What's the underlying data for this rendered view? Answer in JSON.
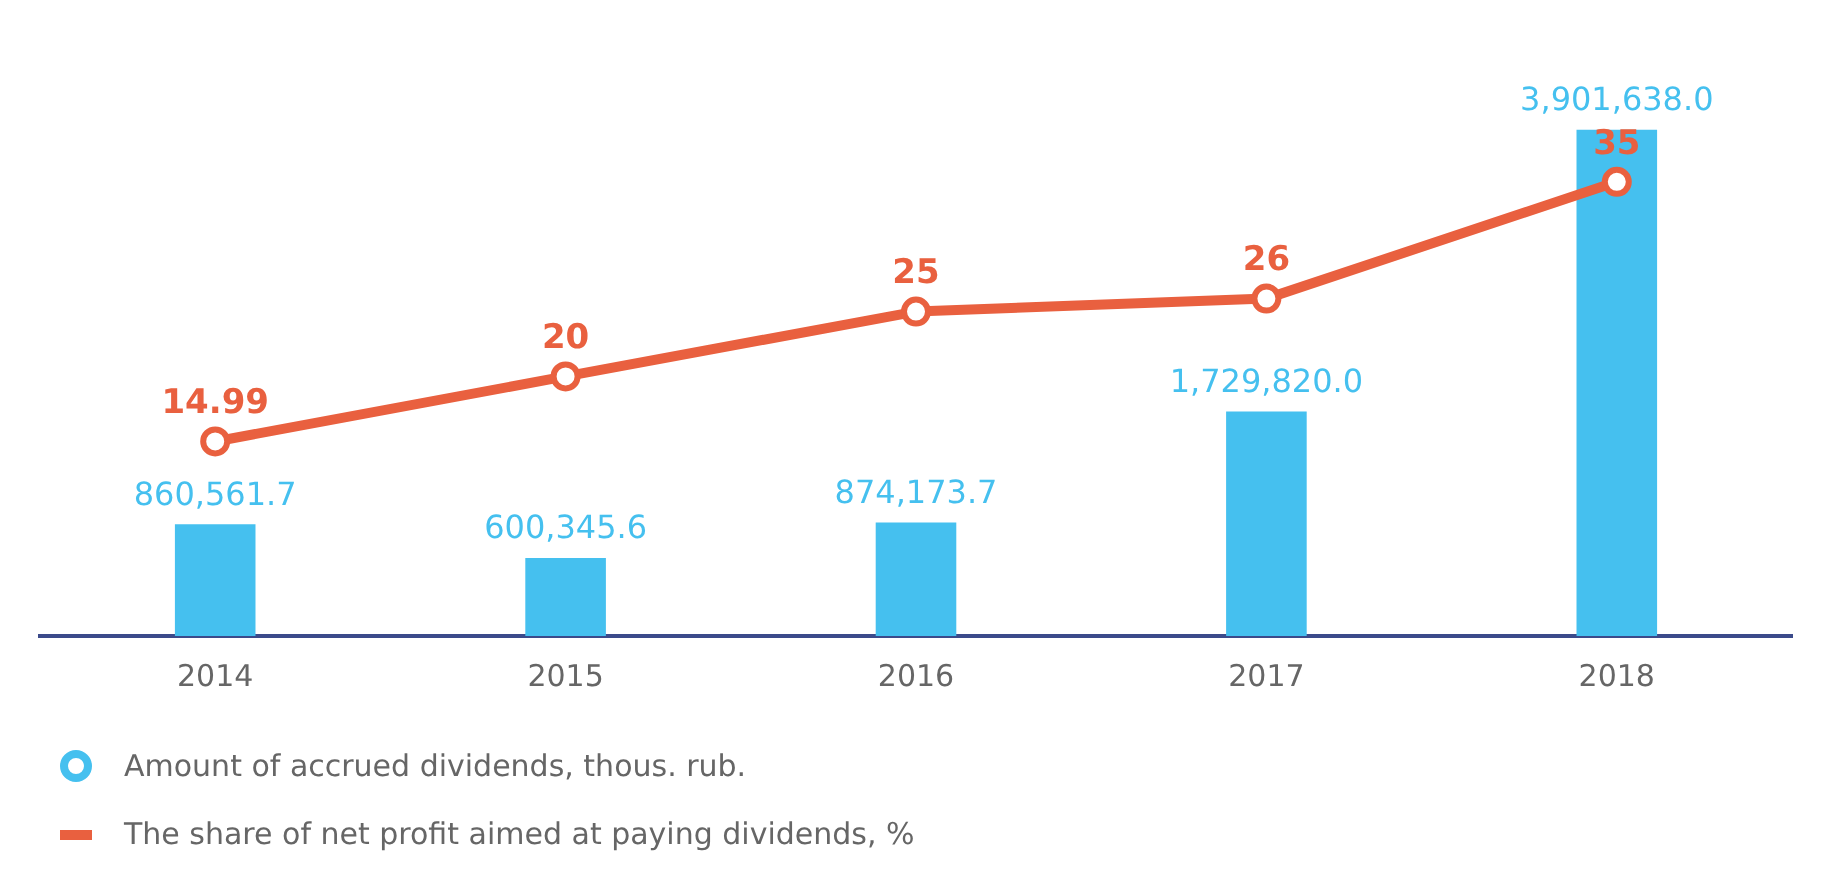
{
  "chart_data": {
    "type": "bar",
    "categories": [
      "2014",
      "2015",
      "2016",
      "2017",
      "2018"
    ],
    "series": [
      {
        "name": "Amount of accrued dividends, thous. rub.",
        "type": "bar",
        "color": "#45c0ef",
        "values": [
          860561.7,
          600345.6,
          874173.7,
          1729820.0,
          3901638.0
        ],
        "value_labels": [
          "860,561.7",
          "600,345.6",
          "874,173.7",
          "1,729,820.0",
          "3,901,638.0"
        ]
      },
      {
        "name": "The share of net profit aimed at paying dividends, %",
        "type": "line",
        "axis": "y2",
        "color": "#e9603f",
        "marker": "circle",
        "values": [
          14.99,
          20,
          25,
          26,
          35
        ],
        "value_labels": [
          "14.99",
          "20",
          "25",
          "26",
          "35"
        ]
      }
    ],
    "tick_labels": "x",
    "grid": false,
    "legend": "bottom left"
  }
}
